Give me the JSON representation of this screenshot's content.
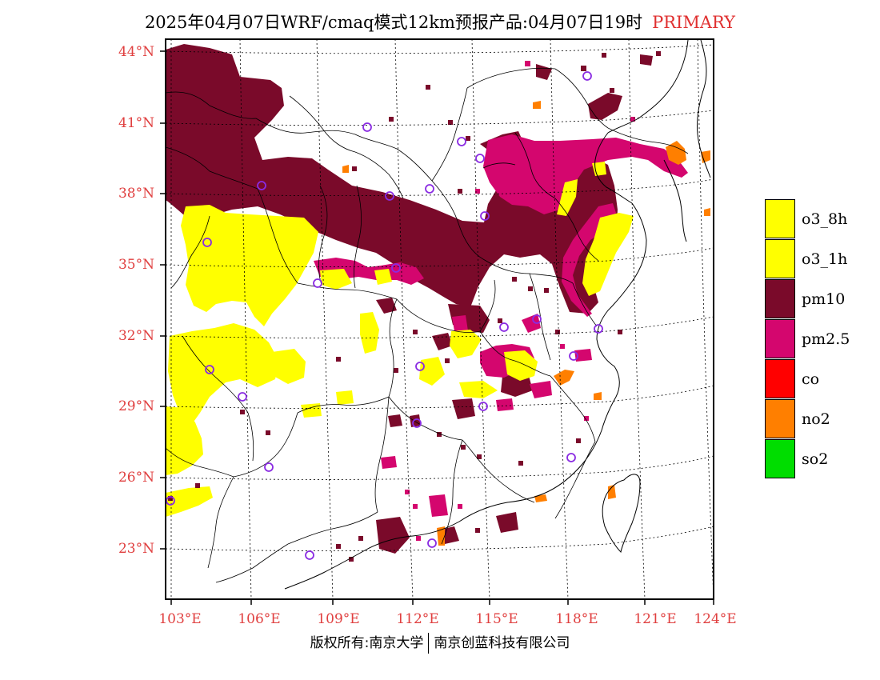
{
  "title": {
    "text": "2025年04月07日WRF/cmaq模式12km预报产品:04月07日19时",
    "tag": "PRIMARY"
  },
  "axes": {
    "lat_labels": [
      "44°N",
      "41°N",
      "38°N",
      "35°N",
      "32°N",
      "29°N",
      "26°N",
      "23°N"
    ],
    "lon_labels": [
      "103°E",
      "106°E",
      "109°E",
      "112°E",
      "115°E",
      "118°E",
      "121°E",
      "124°E"
    ],
    "lat_range": [
      20.5,
      44.5
    ],
    "lon_range": [
      103,
      124
    ]
  },
  "legend": [
    {
      "label": "o3_8h",
      "color": "#ffff00"
    },
    {
      "label": "o3_1h",
      "color": "#ffff00"
    },
    {
      "label": "pm10",
      "color": "#7a0a2a"
    },
    {
      "label": "pm2.5",
      "color": "#d4066e"
    },
    {
      "label": "co",
      "color": "#ff0000"
    },
    {
      "label": "no2",
      "color": "#ff7f00"
    },
    {
      "label": "so2",
      "color": "#00dd00"
    }
  ],
  "colors": {
    "o3": "#ffff00",
    "pm10": "#7a0a2a",
    "pm25": "#d4066e",
    "no2": "#ff7f00",
    "station": "#8a2be2",
    "label": "#e04040"
  },
  "footer": {
    "left": "版权所有:南京大学",
    "right": "南京创蓝科技有限公司"
  }
}
